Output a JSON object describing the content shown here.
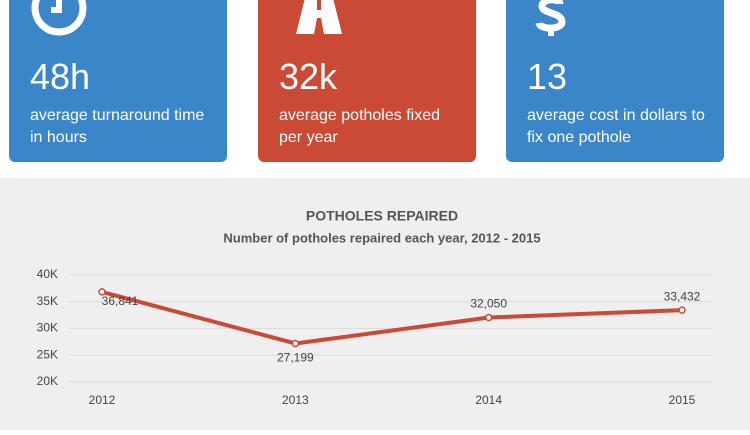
{
  "cards": [
    {
      "value": "48h",
      "label_lines": [
        "average turnaround time",
        "in hours"
      ]
    },
    {
      "value": "32k",
      "label_lines": [
        "average potholes fixed",
        "per year"
      ]
    },
    {
      "value": "13",
      "label_lines": [
        "average cost in dollars to",
        "fix one pothole"
      ]
    }
  ],
  "chart_data": {
    "type": "line",
    "title": "POTHOLES REPAIRED",
    "subtitle": "Number of potholes repaired each year, 2012 - 2015",
    "categories": [
      "2012",
      "2013",
      "2014",
      "2015"
    ],
    "series": [
      {
        "name": "Potholes repaired",
        "color": "#cb4a36",
        "values": [
          36841,
          27199,
          32050,
          33432
        ],
        "value_labels": [
          "36,841",
          "27,199",
          "32,050",
          "33,432"
        ]
      }
    ],
    "ylim": [
      20000,
      40000
    ],
    "yticks": [
      {
        "value": 20000,
        "label": "20K"
      },
      {
        "value": 25000,
        "label": "25K"
      },
      {
        "value": 30000,
        "label": "30K"
      },
      {
        "value": 35000,
        "label": "35K"
      },
      {
        "value": 40000,
        "label": "40K"
      }
    ],
    "grid": true
  }
}
